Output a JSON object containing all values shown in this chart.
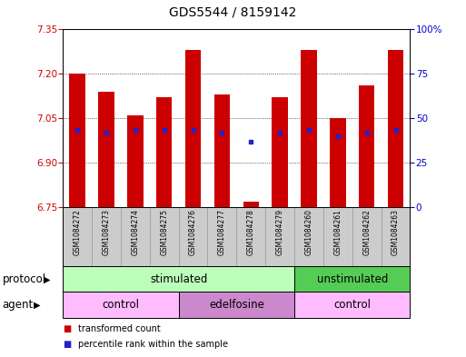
{
  "title": "GDS5544 / 8159142",
  "samples": [
    "GSM1084272",
    "GSM1084273",
    "GSM1084274",
    "GSM1084275",
    "GSM1084276",
    "GSM1084277",
    "GSM1084278",
    "GSM1084279",
    "GSM1084260",
    "GSM1084261",
    "GSM1084262",
    "GSM1084263"
  ],
  "bar_top": [
    7.2,
    7.14,
    7.06,
    7.12,
    7.28,
    7.13,
    6.77,
    7.12,
    7.28,
    7.05,
    7.16,
    7.28
  ],
  "bar_bottom": 6.75,
  "percentile_values": [
    7.01,
    7.0,
    7.01,
    7.01,
    7.01,
    7.0,
    6.97,
    7.0,
    7.01,
    6.99,
    7.0,
    7.01
  ],
  "bar_color": "#cc0000",
  "percentile_color": "#2222cc",
  "ylim_left": [
    6.75,
    7.35
  ],
  "ylim_right": [
    0,
    100
  ],
  "yticks_left": [
    6.75,
    6.9,
    7.05,
    7.2,
    7.35
  ],
  "yticks_right": [
    0,
    25,
    50,
    75,
    100
  ],
  "ytick_labels_right": [
    "0",
    "25",
    "50",
    "75",
    "100%"
  ],
  "bg_color": "#ffffff",
  "protocol_groups": [
    {
      "label": "stimulated",
      "start": 0,
      "end": 8,
      "color": "#bbffbb"
    },
    {
      "label": "unstimulated",
      "start": 8,
      "end": 12,
      "color": "#55cc55"
    }
  ],
  "agent_groups": [
    {
      "label": "control",
      "start": 0,
      "end": 4,
      "color": "#ffbbff"
    },
    {
      "label": "edelfosine",
      "start": 4,
      "end": 8,
      "color": "#cc88cc"
    },
    {
      "label": "control",
      "start": 8,
      "end": 12,
      "color": "#ffbbff"
    }
  ],
  "legend_bar_color": "#cc0000",
  "legend_percentile_color": "#2222cc",
  "legend_bar_label": "transformed count",
  "legend_percentile_label": "percentile rank within the sample",
  "title_fontsize": 10,
  "tick_fontsize": 7.5,
  "label_fontsize": 8.5,
  "sample_fontsize": 5.5
}
